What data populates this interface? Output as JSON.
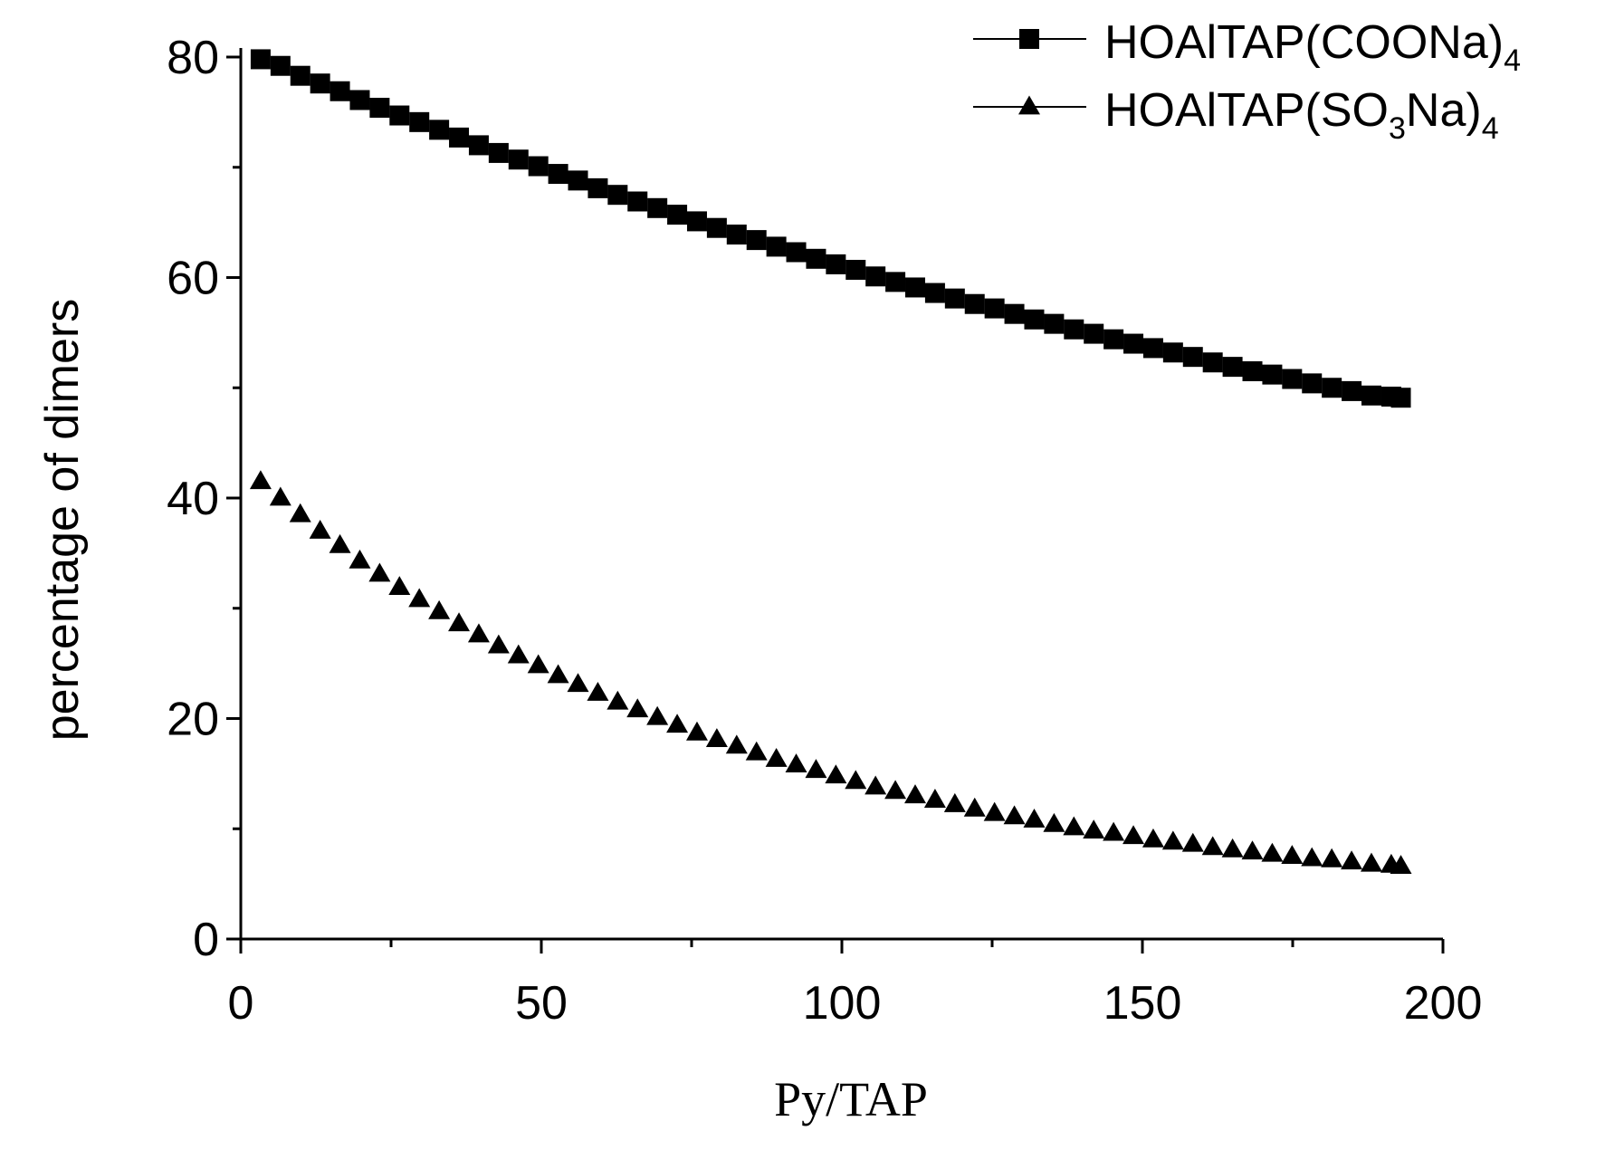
{
  "chart_data": {
    "type": "scatter",
    "title": "",
    "xlabel": "Py/TAP",
    "ylabel": "percentage of dimers",
    "xlim": [
      0,
      200
    ],
    "ylim": [
      0,
      80
    ],
    "x_ticks": [
      0,
      50,
      100,
      150,
      200
    ],
    "y_ticks": [
      0,
      20,
      40,
      60,
      80
    ],
    "grid": false,
    "legend_position": "top-right",
    "series": [
      {
        "name_parts": [
          "HOAlTAP(COONa)",
          "4"
        ],
        "marker": "square",
        "color": "#000000",
        "x": [
          3.3,
          6.6,
          9.9,
          13.2,
          16.5,
          19.8,
          23.1,
          26.4,
          29.7,
          33.0,
          36.3,
          39.6,
          42.9,
          46.2,
          49.5,
          52.8,
          56.1,
          59.4,
          62.7,
          66.0,
          69.3,
          72.6,
          75.9,
          79.2,
          82.5,
          85.8,
          89.1,
          92.4,
          95.7,
          99.0,
          102.3,
          105.6,
          108.9,
          112.2,
          115.5,
          118.8,
          122.1,
          125.4,
          128.7,
          132.0,
          135.3,
          138.6,
          141.9,
          145.2,
          148.5,
          151.8,
          155.1,
          158.4,
          161.7,
          165.0,
          168.3,
          171.6,
          174.9,
          178.2,
          181.5,
          184.8,
          188.1,
          191.4,
          193.0
        ],
        "y": [
          79.8,
          79.2,
          78.3,
          77.6,
          76.9,
          76.1,
          75.4,
          74.7,
          74.1,
          73.4,
          72.7,
          72.0,
          71.3,
          70.7,
          70.1,
          69.4,
          68.8,
          68.1,
          67.5,
          66.9,
          66.3,
          65.7,
          65.1,
          64.5,
          63.9,
          63.4,
          62.8,
          62.3,
          61.7,
          61.2,
          60.7,
          60.1,
          59.6,
          59.1,
          58.6,
          58.1,
          57.6,
          57.2,
          56.7,
          56.2,
          55.8,
          55.3,
          54.9,
          54.4,
          54.0,
          53.6,
          53.2,
          52.8,
          52.3,
          51.9,
          51.5,
          51.2,
          50.8,
          50.4,
          50.0,
          49.7,
          49.3,
          49.2,
          49.1
        ]
      },
      {
        "name_parts": [
          "HOAlTAP(SO",
          "3",
          "Na)",
          "4"
        ],
        "marker": "triangle",
        "color": "#000000",
        "x": [
          3.3,
          6.6,
          9.9,
          13.2,
          16.5,
          19.8,
          23.1,
          26.4,
          29.7,
          33.0,
          36.3,
          39.6,
          42.9,
          46.2,
          49.5,
          52.8,
          56.1,
          59.4,
          62.7,
          66.0,
          69.3,
          72.6,
          75.9,
          79.2,
          82.5,
          85.8,
          89.1,
          92.4,
          95.7,
          99.0,
          102.3,
          105.6,
          108.9,
          112.2,
          115.5,
          118.8,
          122.1,
          125.4,
          128.7,
          132.0,
          135.3,
          138.6,
          141.9,
          145.2,
          148.5,
          151.8,
          155.1,
          158.4,
          161.7,
          165.0,
          168.3,
          171.6,
          174.9,
          178.2,
          181.5,
          184.8,
          188.1,
          191.4,
          193.0
        ],
        "y": [
          41.5,
          40.0,
          38.5,
          37.0,
          35.7,
          34.3,
          33.1,
          31.9,
          30.8,
          29.7,
          28.6,
          27.6,
          26.6,
          25.7,
          24.8,
          23.9,
          23.1,
          22.3,
          21.5,
          20.8,
          20.1,
          19.4,
          18.7,
          18.1,
          17.5,
          16.9,
          16.3,
          15.8,
          15.3,
          14.8,
          14.3,
          13.8,
          13.4,
          13.0,
          12.6,
          12.2,
          11.8,
          11.4,
          11.1,
          10.8,
          10.4,
          10.1,
          9.8,
          9.6,
          9.3,
          9.0,
          8.8,
          8.6,
          8.3,
          8.1,
          7.9,
          7.7,
          7.5,
          7.3,
          7.2,
          7.0,
          6.8,
          6.7,
          6.6
        ]
      }
    ]
  }
}
